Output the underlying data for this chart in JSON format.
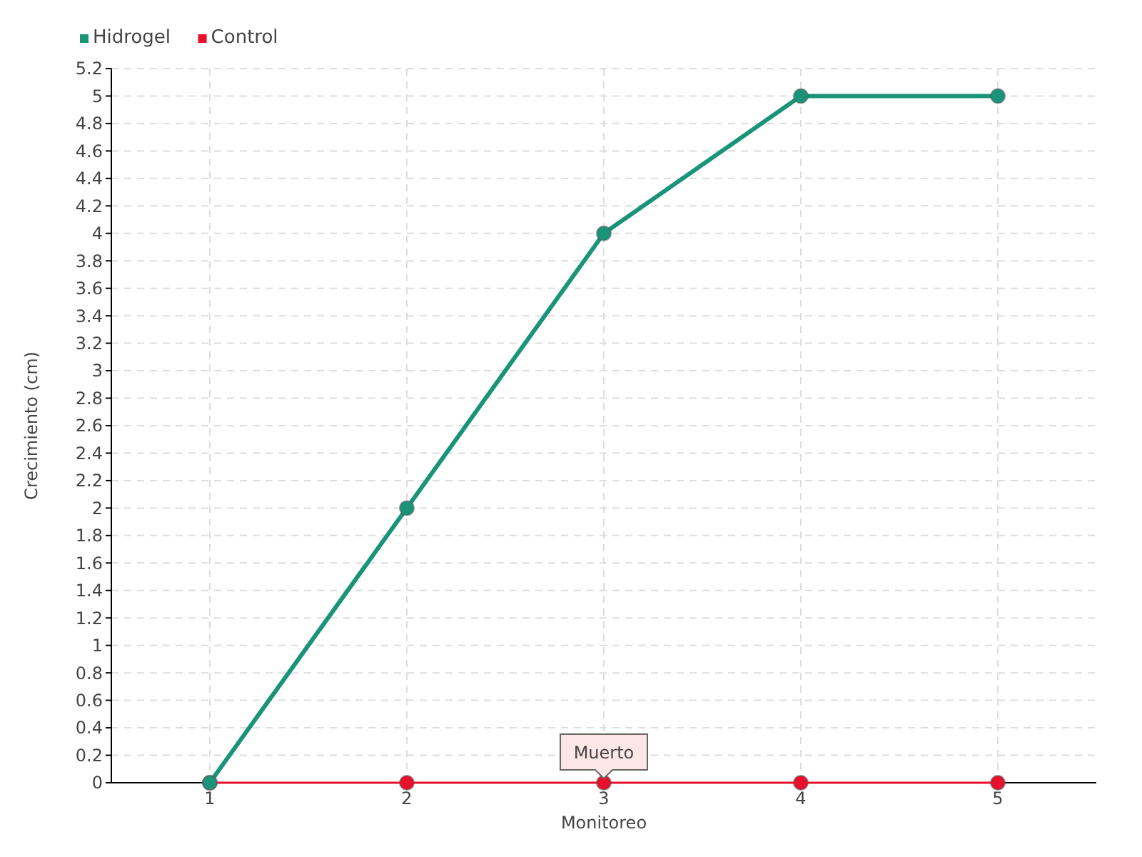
{
  "chart_data": {
    "type": "line",
    "xlabel": "Monitoreo",
    "ylabel": "Crecimiento (cm)",
    "categories": [
      "1",
      "2",
      "3",
      "4",
      "5"
    ],
    "series": [
      {
        "name": "Hidrogel",
        "color": "#1a9479",
        "values": [
          0,
          2,
          4,
          5,
          5
        ]
      },
      {
        "name": "Control",
        "color": "#e8102a",
        "values": [
          0,
          0,
          0,
          0,
          0
        ]
      }
    ],
    "ylim": [
      0,
      5.2
    ],
    "yticks": [
      0,
      0.2,
      0.4,
      0.6,
      0.8,
      1,
      1.2,
      1.4,
      1.6,
      1.8,
      2,
      2.2,
      2.4,
      2.6,
      2.8,
      3,
      3.2,
      3.4,
      3.6,
      3.8,
      4,
      4.2,
      4.4,
      4.6,
      4.8,
      5,
      5.2
    ],
    "grid": true,
    "legend": "top left",
    "marker": "circle",
    "line_style": "solid",
    "annotations": [
      {
        "text": "Muerto",
        "x": "3",
        "y": 0
      }
    ]
  }
}
